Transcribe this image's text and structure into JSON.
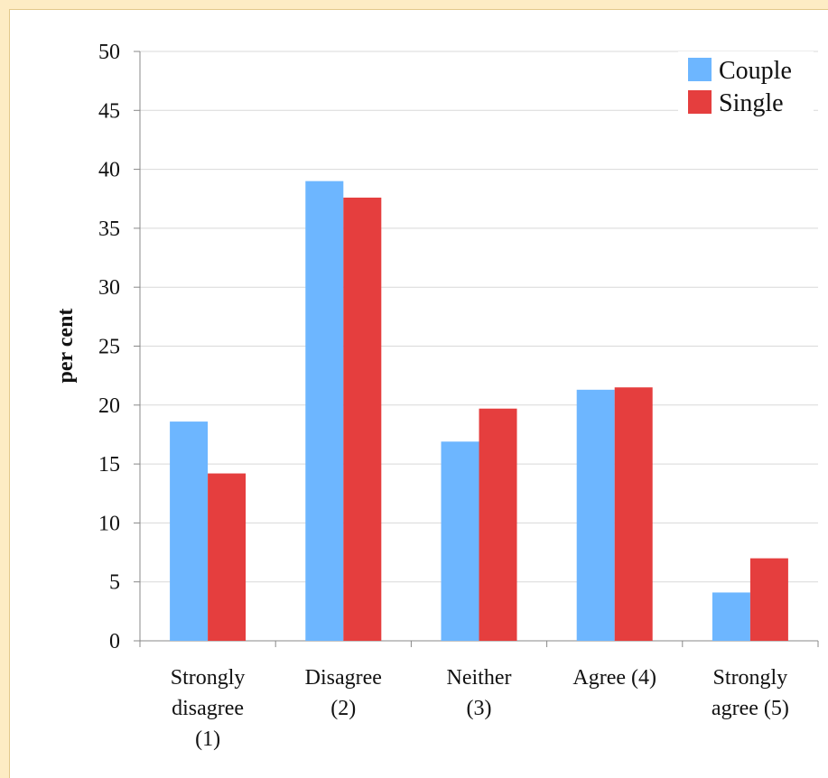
{
  "chart_data": {
    "type": "bar",
    "ylabel": "per cent",
    "xlabel": "",
    "ylim": [
      0,
      50
    ],
    "yticks": [
      0,
      5,
      10,
      15,
      20,
      25,
      30,
      35,
      40,
      45,
      50
    ],
    "grid": true,
    "legend_position": "top-right",
    "categories": [
      [
        "Strongly",
        "disagree",
        "(1)"
      ],
      [
        "Disagree",
        "(2)"
      ],
      [
        "Neither",
        "(3)"
      ],
      [
        "Agree (4)"
      ],
      [
        "Strongly",
        "agree (5)"
      ]
    ],
    "series": [
      {
        "name": "Couple",
        "color": "#6db6ff",
        "values": [
          18.6,
          39.0,
          16.9,
          21.3,
          4.1
        ]
      },
      {
        "name": "Single",
        "color": "#e53e3e",
        "values": [
          14.2,
          37.6,
          19.7,
          21.5,
          7.0
        ]
      }
    ]
  }
}
